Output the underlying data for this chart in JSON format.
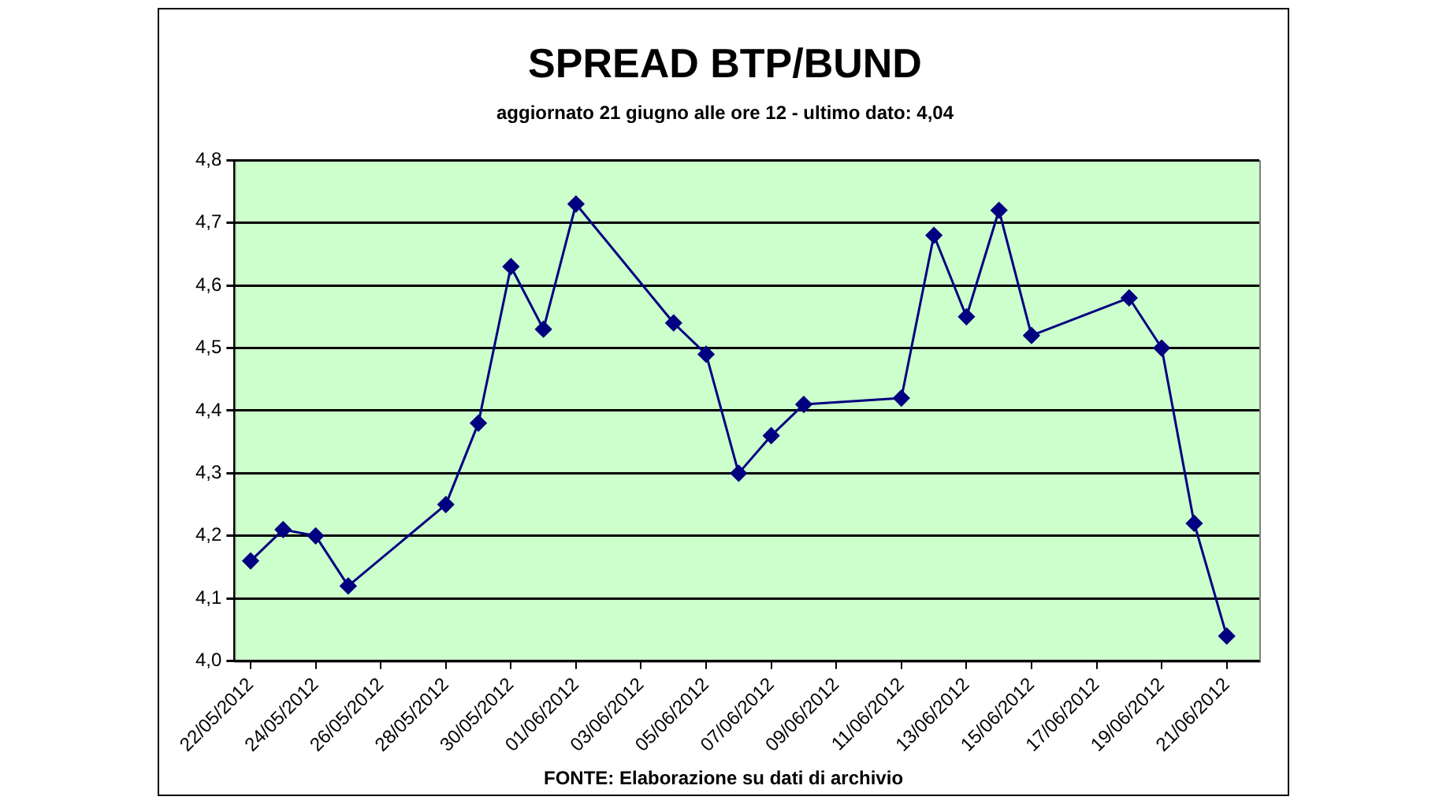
{
  "chart_data": {
    "type": "line",
    "title": "SPREAD BTP/BUND",
    "subtitle": "aggiornato 21 giugno alle ore 12 - ultimo dato: 4,04",
    "annotations": [
      "FONTE: Elaborazione su dati di archivio"
    ],
    "x": [
      "2012-05-22",
      "2012-05-23",
      "2012-05-24",
      "2012-05-25",
      "2012-05-28",
      "2012-05-29",
      "2012-05-30",
      "2012-05-31",
      "2012-06-01",
      "2012-06-04",
      "2012-06-05",
      "2012-06-06",
      "2012-06-07",
      "2012-06-08",
      "2012-06-11",
      "2012-06-12",
      "2012-06-13",
      "2012-06-14",
      "2012-06-15",
      "2012-06-18",
      "2012-06-19",
      "2012-06-20",
      "2012-06-21"
    ],
    "series": [
      {
        "color": "#000080",
        "values": [
          4.16,
          4.21,
          4.2,
          4.12,
          4.25,
          4.38,
          4.63,
          4.53,
          4.73,
          4.54,
          4.49,
          4.3,
          4.36,
          4.41,
          4.42,
          4.68,
          4.55,
          4.72,
          4.52,
          4.58,
          4.5,
          4.22,
          4.04
        ]
      }
    ],
    "xlim": [
      "2012-05-21T12:00",
      "2012-06-22"
    ],
    "xticks": [
      {
        "value": "2012-05-22",
        "label": "22/05/2012"
      },
      {
        "value": "2012-05-24",
        "label": "24/05/2012"
      },
      {
        "value": "2012-05-26",
        "label": "26/05/2012"
      },
      {
        "value": "2012-05-28",
        "label": "28/05/2012"
      },
      {
        "value": "2012-05-30",
        "label": "30/05/2012"
      },
      {
        "value": "2012-06-01",
        "label": "01/06/2012"
      },
      {
        "value": "2012-06-03",
        "label": "03/06/2012"
      },
      {
        "value": "2012-06-05",
        "label": "05/06/2012"
      },
      {
        "value": "2012-06-07",
        "label": "07/06/2012"
      },
      {
        "value": "2012-06-09",
        "label": "09/06/2012"
      },
      {
        "value": "2012-06-11",
        "label": "11/06/2012"
      },
      {
        "value": "2012-06-13",
        "label": "13/06/2012"
      },
      {
        "value": "2012-06-15",
        "label": "15/06/2012"
      },
      {
        "value": "2012-06-17",
        "label": "17/06/2012"
      },
      {
        "value": "2012-06-19",
        "label": "19/06/2012"
      },
      {
        "value": "2012-06-21",
        "label": "21/06/2012"
      }
    ],
    "ylim": [
      4.0,
      4.8
    ],
    "yticks": [
      {
        "value": 4.0,
        "label": "4,0"
      },
      {
        "value": 4.1,
        "label": "4,1"
      },
      {
        "value": 4.2,
        "label": "4,2"
      },
      {
        "value": 4.3,
        "label": "4,3"
      },
      {
        "value": 4.4,
        "label": "4,4"
      },
      {
        "value": 4.5,
        "label": "4,5"
      },
      {
        "value": 4.6,
        "label": "4,6"
      },
      {
        "value": 4.7,
        "label": "4,7"
      },
      {
        "value": 4.8,
        "label": "4,8"
      }
    ],
    "grid": "y",
    "legend": false,
    "marker": "diamond",
    "line_style": "solid"
  }
}
